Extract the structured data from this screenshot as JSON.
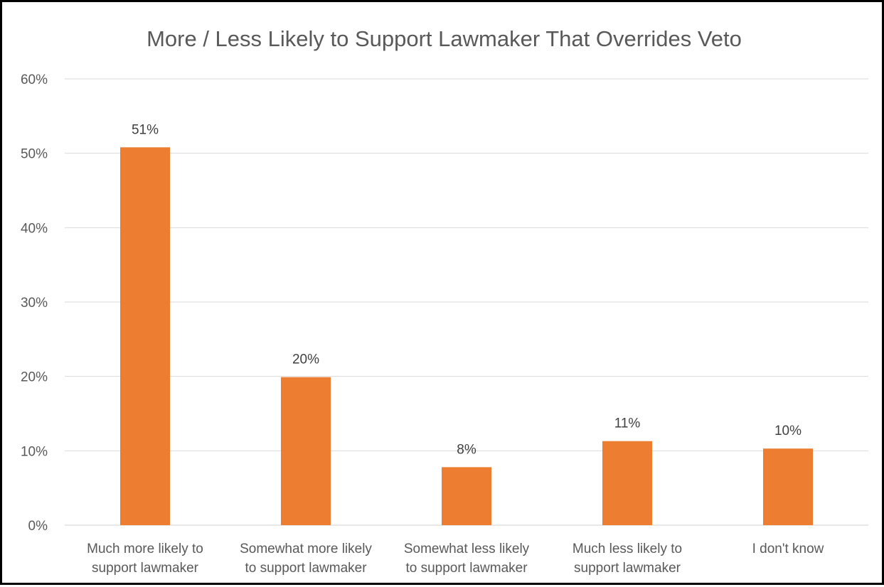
{
  "chart_data": {
    "type": "bar",
    "title": "More / Less Likely to Support Lawmaker That Overrides Veto",
    "categories": [
      [
        "Much more likely to",
        "support lawmaker"
      ],
      [
        "Somewhat more likely",
        "to support lawmaker"
      ],
      [
        "Somewhat less likely",
        "to support lawmaker"
      ],
      [
        "Much less likely to",
        "support lawmaker"
      ],
      [
        "I don't know"
      ]
    ],
    "values": [
      51,
      20,
      8,
      11,
      10
    ],
    "plotted_values": [
      50.8,
      19.9,
      7.8,
      11.3,
      10.3
    ],
    "data_labels": [
      "51%",
      "20%",
      "8%",
      "11%",
      "10%"
    ],
    "ylim": [
      0,
      60
    ],
    "yticks": [
      0,
      10,
      20,
      30,
      40,
      50,
      60
    ],
    "ytick_labels": [
      "0%",
      "10%",
      "20%",
      "30%",
      "40%",
      "50%",
      "60%"
    ],
    "xlabel": "",
    "ylabel": "",
    "grid": true,
    "legend": "none",
    "bar_color": "#ed7d31"
  }
}
